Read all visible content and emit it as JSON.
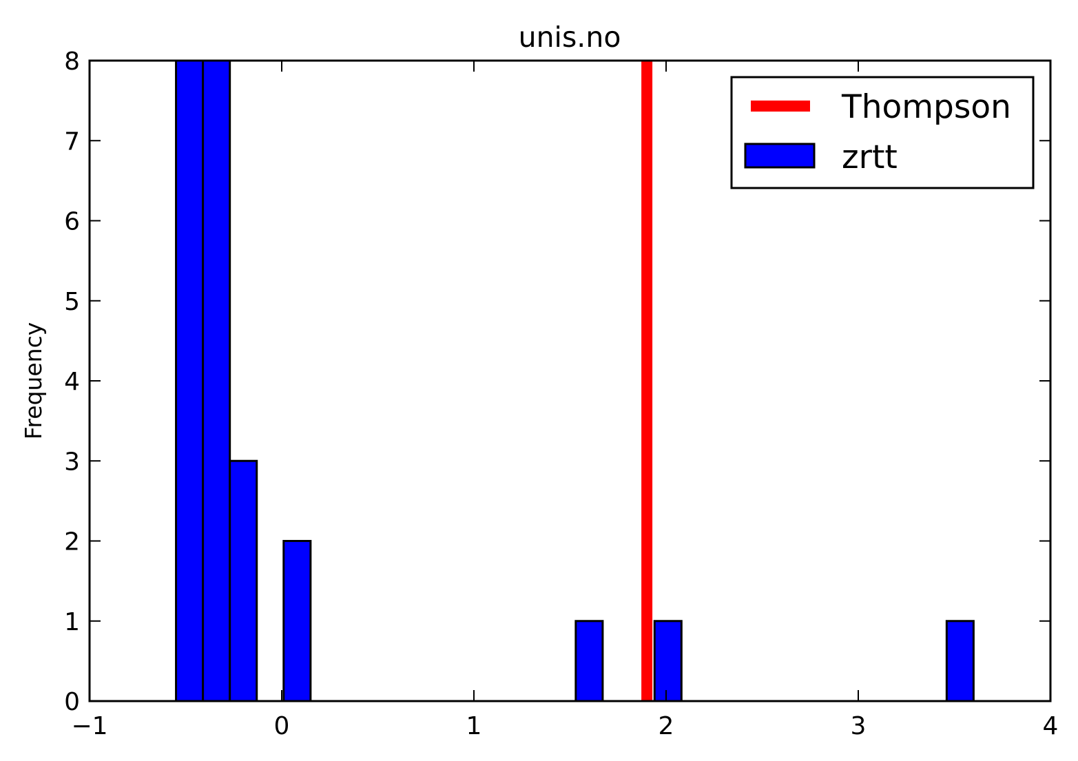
{
  "chart_data": {
    "type": "bar",
    "title": "unis.no",
    "xlabel": "",
    "ylabel": "Frequency",
    "xlim": [
      -1,
      4
    ],
    "ylim": [
      0,
      8
    ],
    "x_ticks": [
      {
        "value": -1,
        "label": "−1"
      },
      {
        "value": 0,
        "label": "0"
      },
      {
        "value": 1,
        "label": "1"
      },
      {
        "value": 2,
        "label": "2"
      },
      {
        "value": 3,
        "label": "3"
      },
      {
        "value": 4,
        "label": "4"
      }
    ],
    "y_ticks": [
      {
        "value": 0,
        "label": "0"
      },
      {
        "value": 1,
        "label": "1"
      },
      {
        "value": 2,
        "label": "2"
      },
      {
        "value": 3,
        "label": "3"
      },
      {
        "value": 4,
        "label": "4"
      },
      {
        "value": 5,
        "label": "5"
      },
      {
        "value": 6,
        "label": "6"
      },
      {
        "value": 7,
        "label": "7"
      },
      {
        "value": 8,
        "label": "8"
      }
    ],
    "grid": false,
    "legend_position": "top-right",
    "histogram": {
      "name": "zrtt",
      "color": "#0000ff",
      "bins": [
        {
          "x0": -0.55,
          "x1": -0.41,
          "count": 8
        },
        {
          "x0": -0.41,
          "x1": -0.27,
          "count": 8
        },
        {
          "x0": -0.27,
          "x1": -0.13,
          "count": 3
        },
        {
          "x0": 0.01,
          "x1": 0.15,
          "count": 2
        },
        {
          "x0": 1.53,
          "x1": 1.67,
          "count": 1
        },
        {
          "x0": 1.94,
          "x1": 2.08,
          "count": 1
        },
        {
          "x0": 3.46,
          "x1": 3.6,
          "count": 1
        }
      ]
    },
    "vlines": [
      {
        "name": "Thompson",
        "x": 1.9,
        "color": "#ff0000"
      }
    ]
  }
}
